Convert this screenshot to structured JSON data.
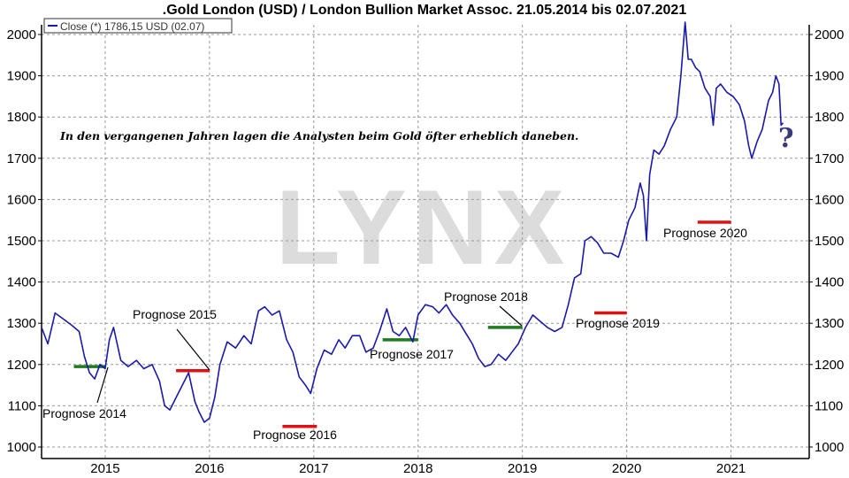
{
  "chart_data": {
    "type": "line",
    "title": ".Gold London (USD) / London Bullion Market Assoc. 21.05.2014 bis 02.07.2021",
    "legend": {
      "label": "Close (*) 1786,15 USD (02.07)",
      "placement": "top-left"
    },
    "annotation": "In den vergangenen Jahren lagen die Analysten beim Gold öfter erheblich daneben.",
    "question_mark": "?",
    "watermark": "LYNX",
    "xlim": [
      2014.39,
      2021.75
    ],
    "ylim": [
      980,
      2040
    ],
    "grid": true,
    "x_ticks": [
      2015,
      2016,
      2017,
      2018,
      2019,
      2020,
      2021
    ],
    "x_tick_labels": [
      "2015",
      "2016",
      "2017",
      "2018",
      "2019",
      "2020",
      "2021"
    ],
    "y_ticks": [
      1000,
      1100,
      1200,
      1300,
      1400,
      1500,
      1600,
      1700,
      1800,
      1900,
      2000
    ],
    "y_tick_labels": [
      "1000",
      "1100",
      "1200",
      "1300",
      "1400",
      "1500",
      "1600",
      "1700",
      "1800",
      "1900",
      "2000"
    ],
    "series": [
      {
        "name": "Close",
        "color": "#1a1aaa",
        "x": [
          2014.39,
          2014.45,
          2014.52,
          2014.6,
          2014.68,
          2014.75,
          2014.8,
          2014.85,
          2014.9,
          2014.95,
          2015.0,
          2015.04,
          2015.08,
          2015.15,
          2015.22,
          2015.3,
          2015.37,
          2015.45,
          2015.52,
          2015.57,
          2015.62,
          2015.68,
          2015.74,
          2015.8,
          2015.86,
          2015.9,
          2015.95,
          2016.0,
          2016.05,
          2016.1,
          2016.17,
          2016.25,
          2016.33,
          2016.4,
          2016.47,
          2016.53,
          2016.6,
          2016.67,
          2016.74,
          2016.8,
          2016.86,
          2016.92,
          2016.97,
          2017.03,
          2017.1,
          2017.17,
          2017.24,
          2017.3,
          2017.37,
          2017.44,
          2017.5,
          2017.57,
          2017.63,
          2017.7,
          2017.76,
          2017.82,
          2017.88,
          2017.95,
          2018.0,
          2018.07,
          2018.14,
          2018.2,
          2018.27,
          2018.33,
          2018.4,
          2018.46,
          2018.52,
          2018.58,
          2018.64,
          2018.7,
          2018.77,
          2018.84,
          2018.9,
          2018.96,
          2019.03,
          2019.1,
          2019.17,
          2019.24,
          2019.31,
          2019.38,
          2019.44,
          2019.5,
          2019.56,
          2019.6,
          2019.66,
          2019.72,
          2019.78,
          2019.85,
          2019.92,
          2019.97,
          2020.02,
          2020.08,
          2020.13,
          2020.16,
          2020.19,
          2020.22,
          2020.26,
          2020.31,
          2020.36,
          2020.42,
          2020.48,
          2020.52,
          2020.56,
          2020.59,
          2020.62,
          2020.66,
          2020.7,
          2020.75,
          2020.8,
          2020.83,
          2020.86,
          2020.9,
          2020.96,
          2021.02,
          2021.08,
          2021.13,
          2021.17,
          2021.2,
          2021.25,
          2021.3,
          2021.36,
          2021.4,
          2021.43,
          2021.46,
          2021.48,
          2021.5
        ],
        "y": [
          1290,
          1250,
          1325,
          1310,
          1295,
          1280,
          1220,
          1180,
          1165,
          1200,
          1190,
          1260,
          1290,
          1210,
          1195,
          1210,
          1190,
          1200,
          1160,
          1100,
          1090,
          1120,
          1150,
          1180,
          1110,
          1085,
          1060,
          1070,
          1120,
          1200,
          1255,
          1240,
          1270,
          1250,
          1330,
          1340,
          1320,
          1330,
          1260,
          1230,
          1170,
          1150,
          1130,
          1190,
          1235,
          1225,
          1260,
          1240,
          1270,
          1270,
          1230,
          1240,
          1280,
          1335,
          1280,
          1270,
          1290,
          1255,
          1320,
          1345,
          1340,
          1325,
          1345,
          1320,
          1300,
          1275,
          1250,
          1215,
          1195,
          1200,
          1225,
          1210,
          1230,
          1250,
          1290,
          1320,
          1305,
          1290,
          1280,
          1290,
          1345,
          1410,
          1420,
          1500,
          1510,
          1495,
          1470,
          1470,
          1460,
          1500,
          1550,
          1580,
          1640,
          1610,
          1500,
          1660,
          1720,
          1710,
          1730,
          1770,
          1800,
          1900,
          2030,
          1940,
          1940,
          1920,
          1910,
          1870,
          1850,
          1780,
          1870,
          1880,
          1860,
          1850,
          1830,
          1790,
          1730,
          1700,
          1740,
          1770,
          1840,
          1860,
          1900,
          1880,
          1780,
          1786
        ]
      }
    ],
    "forecasts": [
      {
        "label": "Prognose 2014",
        "value": 1195,
        "from": 2014.7,
        "to": 2015.0,
        "color": "#1e7b1e"
      },
      {
        "label": "Prognose 2015",
        "value": 1185,
        "from": 2015.68,
        "to": 2016.0,
        "color": "#dd1111"
      },
      {
        "label": "Prognose 2016",
        "value": 1050,
        "from": 2016.7,
        "to": 2017.03,
        "color": "#dd1111"
      },
      {
        "label": "Prognose 2017",
        "value": 1260,
        "from": 2017.66,
        "to": 2018.0,
        "color": "#1e7b1e"
      },
      {
        "label": "Prognose 2018",
        "value": 1290,
        "from": 2018.67,
        "to": 2019.0,
        "color": "#1e7b1e"
      },
      {
        "label": "Prognose 2019",
        "value": 1325,
        "from": 2019.69,
        "to": 2020.0,
        "color": "#dd1111"
      },
      {
        "label": "Prognose 2020",
        "value": 1545,
        "from": 2020.68,
        "to": 2021.0,
        "color": "#dd1111"
      }
    ]
  }
}
